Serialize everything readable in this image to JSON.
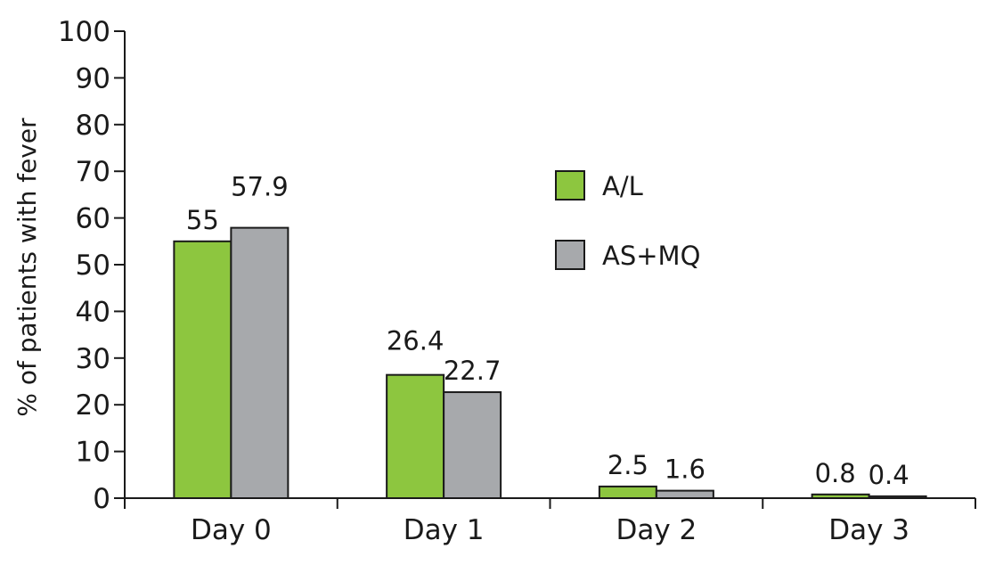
{
  "chart_data": {
    "type": "bar",
    "categories": [
      "Day 0",
      "Day 1",
      "Day 2",
      "Day 3"
    ],
    "series": [
      {
        "name": "A/L",
        "values": [
          55,
          26.4,
          2.5,
          0.8
        ],
        "labels": [
          "55",
          "26.4",
          "2.5",
          "0.8"
        ],
        "color": "#8dc63f"
      },
      {
        "name": "AS+MQ",
        "values": [
          57.9,
          22.7,
          1.6,
          0.4
        ],
        "labels": [
          "57.9",
          "22.7",
          "1.6",
          "0.4"
        ],
        "color": "#a7a9ac"
      }
    ],
    "title": "",
    "xlabel": "",
    "ylabel": "% of patients with fever",
    "ylim": [
      0,
      100
    ],
    "yticks": [
      0,
      10,
      20,
      30,
      40,
      50,
      60,
      70,
      80,
      90,
      100
    ],
    "grid": false,
    "legend": "right of center"
  }
}
